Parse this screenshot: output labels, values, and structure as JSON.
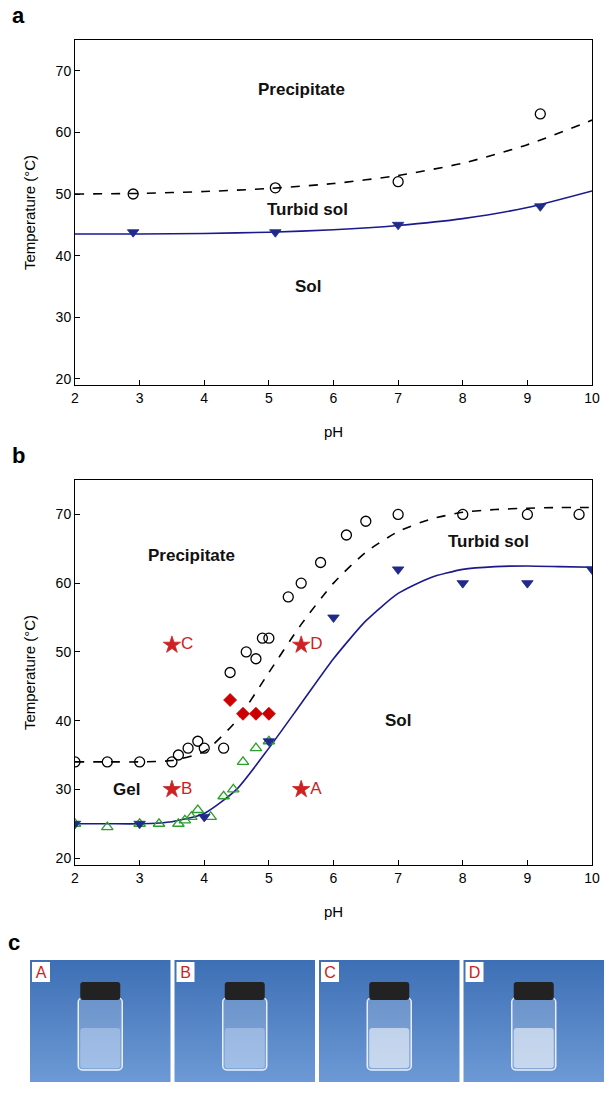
{
  "chart_data": [
    {
      "type": "scatter",
      "panel": "a",
      "x_label": "pH",
      "y_label": "Temperature (°C)",
      "xlim": [
        2,
        10
      ],
      "xticks": [
        2,
        3,
        4,
        5,
        6,
        7,
        8,
        9,
        10
      ],
      "ylim": [
        19,
        75
      ],
      "yticks": [
        20,
        30,
        40,
        50,
        60,
        70
      ],
      "grid": false,
      "annotations": [
        {
          "text": "Precipitate",
          "x": 5.5,
          "y": 67
        },
        {
          "text": "Turbid sol",
          "x": 5.6,
          "y": 47.5
        },
        {
          "text": "Sol",
          "x": 5.6,
          "y": 35
        }
      ],
      "series": [
        {
          "type": "line",
          "color": "#000000",
          "line_style": "dashed",
          "marker": "none",
          "x": [
            2,
            3,
            4,
            5,
            6,
            7,
            8,
            9,
            10
          ],
          "values": [
            50,
            50.1,
            50.4,
            50.9,
            51.7,
            53,
            55,
            58,
            62
          ]
        },
        {
          "type": "line",
          "color": "#1a1a8c",
          "line_style": "solid",
          "marker": "none",
          "x": [
            2,
            3,
            4,
            5,
            6,
            7,
            8,
            9,
            10
          ],
          "values": [
            43.5,
            43.5,
            43.6,
            43.8,
            44.2,
            44.9,
            46,
            47.8,
            50.5
          ]
        },
        {
          "type": "scatter",
          "color": "#000000",
          "marker": "circle-open",
          "x": [
            2.9,
            5.1,
            7,
            9.2
          ],
          "values": [
            50,
            51,
            52,
            63
          ]
        },
        {
          "type": "scatter",
          "color": "#1f2a8a",
          "marker": "triangle-down",
          "x": [
            2.9,
            5.1,
            7,
            9.2
          ],
          "values": [
            43.8,
            43.8,
            45,
            48
          ]
        }
      ]
    },
    {
      "type": "scatter",
      "panel": "b",
      "x_label": "pH",
      "y_label": "Temperature (°C)",
      "xlim": [
        2,
        10
      ],
      "xticks": [
        2,
        3,
        4,
        5,
        6,
        7,
        8,
        9,
        10
      ],
      "ylim": [
        19,
        75
      ],
      "yticks": [
        20,
        30,
        40,
        50,
        60,
        70
      ],
      "grid": false,
      "annotations": [
        {
          "text": "Precipitate",
          "x": 3.8,
          "y": 64
        },
        {
          "text": "Turbid sol",
          "x": 8.4,
          "y": 66
        },
        {
          "text": "Gel",
          "x": 2.8,
          "y": 30
        },
        {
          "text": "Sol",
          "x": 7,
          "y": 40
        }
      ],
      "series": [
        {
          "type": "line",
          "color": "#000000",
          "line_style": "dashed",
          "marker": "none",
          "x": [
            2,
            2.5,
            3,
            3.5,
            4,
            4.5,
            5,
            5.5,
            6,
            6.5,
            7,
            7.5,
            8,
            8.5,
            9,
            9.5,
            10
          ],
          "values": [
            34,
            34,
            34,
            34.2,
            35.5,
            40,
            47,
            54,
            60,
            64.5,
            67.5,
            69.3,
            70.3,
            70.7,
            70.9,
            71,
            71
          ]
        },
        {
          "type": "line",
          "color": "#1a1a8c",
          "line_style": "solid",
          "marker": "none",
          "x": [
            2,
            2.5,
            3,
            3.5,
            4,
            4.5,
            5,
            5.5,
            6,
            6.5,
            7,
            7.5,
            8,
            8.5,
            9,
            9.5,
            10
          ],
          "values": [
            25,
            25,
            25,
            25.3,
            26.5,
            30,
            36,
            42.5,
            49,
            54.5,
            58.5,
            60.8,
            62,
            62.4,
            62.5,
            62.4,
            62.3
          ]
        },
        {
          "type": "scatter",
          "color": "#000000",
          "marker": "circle-open",
          "x": [
            2,
            2.5,
            3,
            3.5,
            3.6,
            3.75,
            3.9,
            4,
            4.3,
            4.4,
            4.65,
            4.8,
            4.9,
            5,
            5.3,
            5.5,
            5.8,
            6.2,
            6.5,
            7,
            8,
            9,
            9.8
          ],
          "values": [
            34,
            34,
            34,
            34,
            35,
            36,
            37,
            36,
            36,
            47,
            50,
            49,
            52,
            52,
            58,
            60,
            63,
            67,
            69,
            70,
            70,
            70,
            70
          ]
        },
        {
          "type": "scatter",
          "color": "#2ca02c",
          "marker": "triangle-up-open",
          "x": [
            2,
            2.5,
            3,
            3.3,
            3.6,
            3.7,
            3.8,
            3.9,
            4.1,
            4.3,
            4.45,
            4.6,
            4.8,
            5
          ],
          "values": [
            25,
            24.5,
            25,
            25,
            25,
            25.5,
            26,
            27,
            26,
            29,
            30,
            34,
            36,
            37
          ]
        },
        {
          "type": "scatter",
          "color": "#1f2a8a",
          "marker": "triangle-down",
          "x": [
            2,
            3,
            4,
            5,
            6,
            7,
            8,
            9,
            10
          ],
          "values": [
            25,
            25,
            26,
            37,
            55,
            62,
            60,
            60,
            62
          ]
        },
        {
          "type": "scatter",
          "color": "#cc0000",
          "marker": "diamond",
          "x": [
            4.4,
            4.6,
            4.8,
            5
          ],
          "values": [
            43,
            41,
            41,
            41
          ]
        },
        {
          "type": "scatter",
          "color": "#cc2222",
          "marker": "star",
          "x": [
            5.5,
            3.5,
            3.5,
            5.5
          ],
          "values": [
            30,
            30,
            51,
            51
          ],
          "labels": [
            "A",
            "B",
            "C",
            "D"
          ]
        }
      ]
    }
  ],
  "photos": {
    "panel": "c",
    "labels": [
      "A",
      "B",
      "C",
      "D"
    ]
  }
}
